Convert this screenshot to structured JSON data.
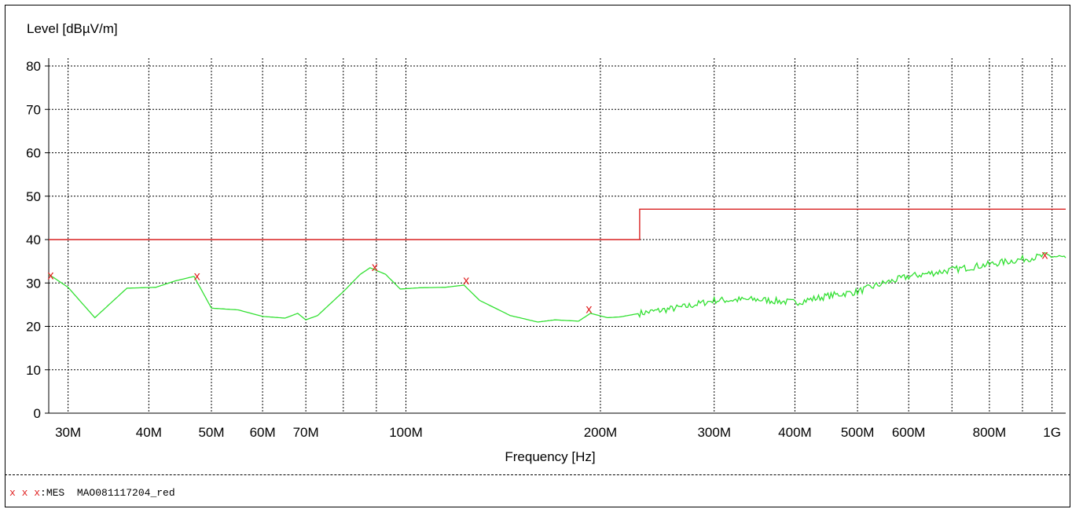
{
  "chart_data": {
    "type": "line",
    "ylabel": "Level [dBµV/m]",
    "xlabel": "Frequency [Hz]",
    "x_scale": "log",
    "xlim": [
      28000000,
      1050000000
    ],
    "ylim": [
      0,
      80
    ],
    "grid": true,
    "y_ticks": [
      0,
      10,
      20,
      30,
      40,
      50,
      60,
      70,
      80
    ],
    "x_ticks": [
      {
        "value": 30000000,
        "label": "30M"
      },
      {
        "value": 40000000,
        "label": "40M"
      },
      {
        "value": 50000000,
        "label": "50M"
      },
      {
        "value": 60000000,
        "label": "60M"
      },
      {
        "value": 70000000,
        "label": "70M"
      },
      {
        "value": 100000000,
        "label": "100M"
      },
      {
        "value": 200000000,
        "label": "200M"
      },
      {
        "value": 300000000,
        "label": "300M"
      },
      {
        "value": 400000000,
        "label": "400M"
      },
      {
        "value": 500000000,
        "label": "500M"
      },
      {
        "value": 600000000,
        "label": "600M"
      },
      {
        "value": 800000000,
        "label": "800M"
      },
      {
        "value": 1000000000,
        "label": "1G"
      }
    ],
    "minor_gridlines": [
      80000000,
      90000000,
      700000000,
      900000000
    ],
    "series": [
      {
        "color": "#32e032",
        "points": [
          [
            28000000,
            32
          ],
          [
            30000000,
            29
          ],
          [
            33000000,
            22
          ],
          [
            37000000,
            28.8
          ],
          [
            41000000,
            29
          ],
          [
            44000000,
            30.5
          ],
          [
            47000000,
            31.5
          ],
          [
            50000000,
            24.2
          ],
          [
            55000000,
            23.8
          ],
          [
            60000000,
            22.3
          ],
          [
            65000000,
            21.9
          ],
          [
            68000000,
            23
          ],
          [
            70000000,
            21.5
          ],
          [
            73000000,
            22.5
          ],
          [
            80000000,
            28
          ],
          [
            85000000,
            32
          ],
          [
            88000000,
            33.5
          ],
          [
            93000000,
            32
          ],
          [
            98000000,
            28.6
          ],
          [
            105000000,
            28.9
          ],
          [
            115000000,
            29
          ],
          [
            123000000,
            29.5
          ],
          [
            130000000,
            26
          ],
          [
            145000000,
            22.5
          ],
          [
            160000000,
            21
          ],
          [
            170000000,
            21.5
          ],
          [
            185000000,
            21.2
          ],
          [
            193000000,
            23
          ],
          [
            205000000,
            22
          ],
          [
            215000000,
            22.2
          ],
          [
            230000000,
            23
          ],
          [
            270000000,
            24.5
          ],
          [
            300000000,
            26
          ],
          [
            350000000,
            26.2
          ],
          [
            400000000,
            25.5
          ],
          [
            450000000,
            27
          ],
          [
            500000000,
            28
          ],
          [
            550000000,
            30
          ],
          [
            600000000,
            31.5
          ],
          [
            700000000,
            33
          ],
          [
            800000000,
            34.3
          ],
          [
            900000000,
            35.5
          ],
          [
            980000000,
            36.3
          ],
          [
            1050000000,
            35.8
          ]
        ]
      },
      {
        "color": "#d82020",
        "points": [
          [
            28000000,
            40
          ],
          [
            230000000,
            40
          ],
          [
            230000000,
            47
          ],
          [
            1050000000,
            47
          ]
        ]
      }
    ],
    "markers": {
      "color": "#e02020",
      "symbol": "x",
      "points": [
        [
          28200000,
          31.8
        ],
        [
          47500000,
          31.6
        ],
        [
          89500000,
          33.7
        ],
        [
          124000000,
          30.6
        ],
        [
          192000000,
          24
        ],
        [
          975000000,
          36.5
        ]
      ]
    }
  },
  "legend": {
    "marks": "x x x",
    "text": ":MES  MAO081117204_red"
  }
}
